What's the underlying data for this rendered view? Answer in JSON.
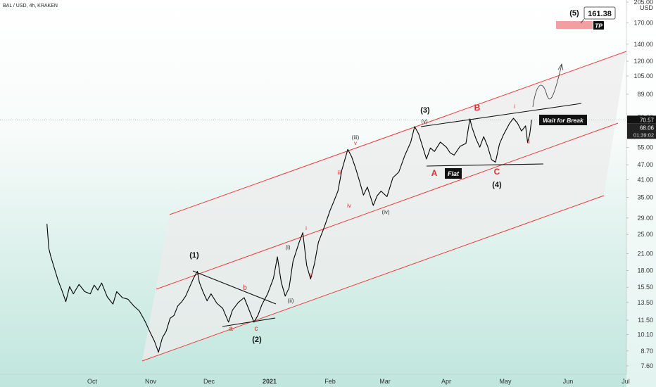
{
  "header": {
    "title": "BAL / USD, 4h, KRAKEN"
  },
  "chart_data": {
    "type": "line",
    "title": "BAL / USD, 4h, KRAKEN",
    "xlabel": "",
    "ylabel": "",
    "y_scale": "log",
    "ylim": [
      7.1,
      205
    ],
    "y_ticks": [
      "205.00",
      "170.00",
      "140.00",
      "120.00",
      "105.00",
      "89.00",
      "72.00",
      "55.00",
      "47.00",
      "41.00",
      "35.00",
      "29.00",
      "25.00",
      "21.00",
      "18.00",
      "15.50",
      "13.50",
      "11.50",
      "10.10",
      "8.70",
      "7.60"
    ],
    "y_tick_values": [
      205,
      170,
      140,
      120,
      105,
      89,
      72,
      55,
      47,
      41,
      35,
      29,
      25,
      21,
      18,
      15.5,
      13.5,
      11.5,
      10.1,
      8.7,
      7.6
    ],
    "y_unit_label": "USD",
    "x_ticks": [
      "Oct",
      "Nov",
      "Dec",
      "2021",
      "Feb",
      "Mar",
      "Apr",
      "May",
      "Jun",
      "Jul"
    ],
    "current_price": "70.57",
    "price_tag": "68.06",
    "countdown": "01:39:02",
    "series": [
      {
        "values": [
          [
            "2020-09-07",
            27.5
          ],
          [
            "2020-09-08",
            22.0
          ],
          [
            "2020-09-09",
            20.5
          ],
          [
            "2020-09-11",
            18.3
          ],
          [
            "2020-09-13",
            16.4
          ],
          [
            "2020-09-15",
            15.0
          ],
          [
            "2020-09-17",
            13.6
          ],
          [
            "2020-09-19",
            15.6
          ],
          [
            "2020-09-21",
            14.6
          ],
          [
            "2020-09-24",
            15.9
          ],
          [
            "2020-09-27",
            14.9
          ],
          [
            "2020-09-30",
            14.6
          ],
          [
            "2020-10-02",
            15.8
          ],
          [
            "2020-10-04",
            15.1
          ],
          [
            "2020-10-06",
            16.1
          ],
          [
            "2020-10-09",
            14.2
          ],
          [
            "2020-10-12",
            13.3
          ],
          [
            "2020-10-14",
            14.9
          ],
          [
            "2020-10-17",
            14.1
          ],
          [
            "2020-10-20",
            13.9
          ],
          [
            "2020-10-23",
            13.1
          ],
          [
            "2020-10-26",
            12.5
          ],
          [
            "2020-10-29",
            11.4
          ],
          [
            "2020-11-01",
            10.2
          ],
          [
            "2020-11-03",
            9.5
          ],
          [
            "2020-11-05",
            8.6
          ],
          [
            "2020-11-07",
            9.8
          ],
          [
            "2020-11-09",
            10.4
          ],
          [
            "2020-11-11",
            11.7
          ],
          [
            "2020-11-13",
            12.0
          ],
          [
            "2020-11-15",
            13.1
          ],
          [
            "2020-11-17",
            13.6
          ],
          [
            "2020-11-19",
            14.3
          ],
          [
            "2020-11-21",
            15.5
          ],
          [
            "2020-11-23",
            16.8
          ],
          [
            "2020-11-25",
            17.9
          ],
          [
            "2020-11-26",
            16.2
          ],
          [
            "2020-11-28",
            14.8
          ],
          [
            "2020-11-30",
            13.7
          ],
          [
            "2020-12-02",
            14.6
          ],
          [
            "2020-12-05",
            13.4
          ],
          [
            "2020-12-08",
            12.8
          ],
          [
            "2020-12-11",
            11.3
          ],
          [
            "2020-12-13",
            12.6
          ],
          [
            "2020-12-16",
            13.5
          ],
          [
            "2020-12-19",
            14.1
          ],
          [
            "2020-12-21",
            12.9
          ],
          [
            "2020-12-24",
            11.3
          ],
          [
            "2020-12-26",
            12.0
          ],
          [
            "2020-12-28",
            13.2
          ],
          [
            "2020-12-31",
            14.6
          ],
          [
            "2021-01-03",
            16.8
          ],
          [
            "2021-01-05",
            20.4
          ],
          [
            "2021-01-07",
            16.2
          ],
          [
            "2021-01-09",
            14.3
          ],
          [
            "2021-01-11",
            15.4
          ],
          [
            "2021-01-13",
            19.6
          ],
          [
            "2021-01-16",
            23.1
          ],
          [
            "2021-01-18",
            25.4
          ],
          [
            "2021-01-20",
            18.9
          ],
          [
            "2021-01-22",
            16.7
          ],
          [
            "2021-01-24",
            19.2
          ],
          [
            "2021-01-26",
            23.3
          ],
          [
            "2021-01-29",
            26.7
          ],
          [
            "2021-02-01",
            31.1
          ],
          [
            "2021-02-03",
            33.9
          ],
          [
            "2021-02-05",
            37.0
          ],
          [
            "2021-02-07",
            44.8
          ],
          [
            "2021-02-10",
            54.0
          ],
          [
            "2021-02-12",
            50.5
          ],
          [
            "2021-02-14",
            45.6
          ],
          [
            "2021-02-16",
            40.5
          ],
          [
            "2021-02-18",
            35.7
          ],
          [
            "2021-02-20",
            38.4
          ],
          [
            "2021-02-23",
            32.5
          ],
          [
            "2021-02-25",
            35.5
          ],
          [
            "2021-02-27",
            37.0
          ],
          [
            "2021-03-02",
            35.2
          ],
          [
            "2021-03-05",
            41.8
          ],
          [
            "2021-03-08",
            44.0
          ],
          [
            "2021-03-11",
            51.1
          ],
          [
            "2021-03-14",
            57.6
          ],
          [
            "2021-03-16",
            66.4
          ],
          [
            "2021-03-18",
            62.2
          ],
          [
            "2021-03-20",
            55.5
          ],
          [
            "2021-03-22",
            49.5
          ],
          [
            "2021-03-24",
            54.7
          ],
          [
            "2021-03-26",
            53.0
          ],
          [
            "2021-03-29",
            57.7
          ],
          [
            "2021-04-01",
            55.2
          ],
          [
            "2021-04-03",
            52.3
          ],
          [
            "2021-04-05",
            51.3
          ],
          [
            "2021-04-08",
            55.5
          ],
          [
            "2021-04-11",
            57.0
          ],
          [
            "2021-04-13",
            71.2
          ],
          [
            "2021-04-14",
            66.2
          ],
          [
            "2021-04-16",
            59.7
          ],
          [
            "2021-04-18",
            55.1
          ],
          [
            "2021-04-20",
            60.6
          ],
          [
            "2021-04-22",
            55.5
          ],
          [
            "2021-04-24",
            49.2
          ],
          [
            "2021-04-26",
            48.1
          ],
          [
            "2021-04-28",
            56.7
          ],
          [
            "2021-04-30",
            61.6
          ],
          [
            "2021-05-03",
            68.2
          ],
          [
            "2021-05-05",
            71.6
          ],
          [
            "2021-05-07",
            68.5
          ],
          [
            "2021-05-09",
            63.8
          ],
          [
            "2021-05-11",
            66.8
          ],
          [
            "2021-05-12",
            57.4
          ],
          [
            "2021-05-13",
            61.7
          ],
          [
            "2021-05-14",
            70.6
          ]
        ]
      }
    ],
    "wave_labels": {
      "impulse": [
        "(1)",
        "(2)",
        "(3)",
        "(4)",
        "(5)"
      ],
      "corrective_upper": [
        "A",
        "B",
        "C"
      ],
      "minor": [
        "a",
        "b",
        "c"
      ],
      "subwaves": [
        "(i)",
        "(ii)",
        "(iii)",
        "(iv)",
        "(v)"
      ],
      "roman_red": [
        "i",
        "ii",
        "iii",
        "iv",
        "v"
      ],
      "final": [
        "i",
        "ii"
      ]
    },
    "target": {
      "label": "(5)",
      "value": "161.38",
      "tag": "TP"
    },
    "annotations": {
      "flat": "Flat",
      "break": "Wait for Break"
    },
    "colors": {
      "price": "#000000",
      "channel": "#e63b3b",
      "channel_fill": "#ececec",
      "wave_red": "#e02b2b",
      "wave_black": "#111111",
      "tp_box": "#f0a0a0",
      "tag_bg": "#111111",
      "tag_fg": "#ffffff",
      "current_price_bg": "#111111"
    }
  }
}
